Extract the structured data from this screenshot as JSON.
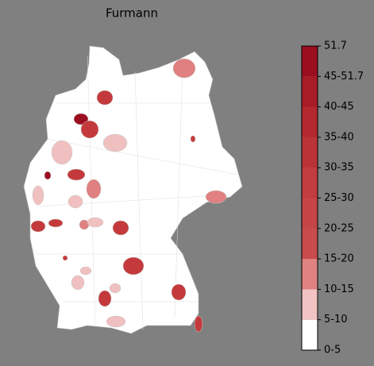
{
  "title": "Furmann",
  "colorbar": {
    "labels": [
      "0-5",
      "5-10",
      "10-15",
      "15-20",
      "20-25",
      "25-30",
      "30-35",
      "35-40",
      "40-45",
      "45-51.7",
      "51.7"
    ],
    "colors": [
      "#ffffff",
      "#f2c3c3",
      "#e08282",
      "#c94b4b",
      "#c64546",
      "#c23d40",
      "#bb3337",
      "#b3292f",
      "#a81c27",
      "#9b0e20"
    ]
  }
}
